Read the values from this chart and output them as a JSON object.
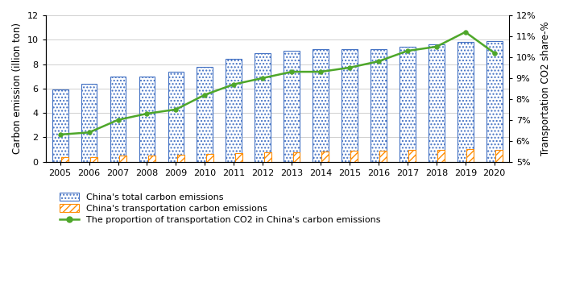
{
  "years": [
    2005,
    2006,
    2007,
    2008,
    2009,
    2010,
    2011,
    2012,
    2013,
    2014,
    2015,
    2016,
    2017,
    2018,
    2019,
    2020
  ],
  "total_emissions": [
    5.9,
    6.4,
    7.0,
    7.0,
    7.4,
    7.8,
    8.4,
    8.9,
    9.1,
    9.2,
    9.2,
    9.2,
    9.4,
    9.6,
    9.8,
    9.9
  ],
  "transport_emissions": [
    0.35,
    0.4,
    0.48,
    0.52,
    0.55,
    0.63,
    0.72,
    0.78,
    0.8,
    0.85,
    0.88,
    0.88,
    0.95,
    1.0,
    1.05,
    1.0
  ],
  "proportion": [
    6.3,
    6.4,
    7.0,
    7.3,
    7.5,
    8.2,
    8.7,
    9.0,
    9.3,
    9.3,
    9.5,
    9.8,
    10.3,
    10.5,
    11.2,
    10.2
  ],
  "bar_color_total": "#4472C4",
  "bar_color_transport": "#FF8C00",
  "line_color": "#4EA72A",
  "blue_bar_width": 0.55,
  "orange_bar_width": 0.25,
  "ylim_left": [
    0,
    12
  ],
  "ylim_right": [
    5,
    12
  ],
  "yticks_left": [
    0,
    2,
    4,
    6,
    8,
    10,
    12
  ],
  "yticks_right": [
    5,
    6,
    7,
    8,
    9,
    10,
    11,
    12
  ],
  "ylabel_left": "Carbon emission (illion ton)",
  "ylabel_right": "Transportation CO2 share-%",
  "legend_labels": [
    "China's total carbon emissions",
    "China's transportation carbon emissions",
    "The proportion of transportation CO2 in China's carbon emissions"
  ],
  "background_color": "#ffffff",
  "grid_color": "#d0d0d0"
}
